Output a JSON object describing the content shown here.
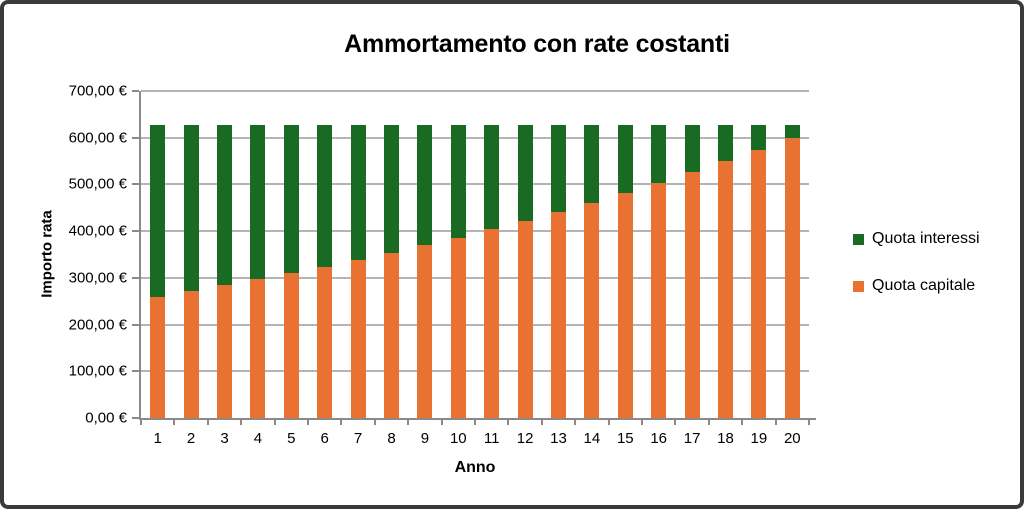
{
  "window": {
    "background": "#ffffff",
    "border_color": "#3a3a3a"
  },
  "colors": {
    "gridline": "#b4b4b4",
    "axis_line": "#8a8a8a",
    "text": "#000000"
  },
  "chart_data": {
    "type": "bar",
    "subtype": "stacked",
    "title": "Ammortamento con rate costanti",
    "xlabel": "Anno",
    "ylabel": "Importo rata",
    "ylim": [
      0,
      700
    ],
    "y_tick_step": 100,
    "grid": true,
    "legend_position": "right",
    "constant_total_rate": 627.0,
    "categories": [
      "1",
      "2",
      "3",
      "4",
      "5",
      "6",
      "7",
      "8",
      "9",
      "10",
      "11",
      "12",
      "13",
      "14",
      "15",
      "16",
      "17",
      "18",
      "19",
      "20"
    ],
    "series": [
      {
        "name": "Quota capitale",
        "color": "#E97132",
        "stack_order": "bottom",
        "values": [
          260.0,
          271.7,
          283.9,
          296.7,
          310.1,
          324.0,
          338.6,
          353.8,
          369.7,
          386.4,
          403.8,
          421.9,
          440.9,
          460.8,
          481.5,
          503.2,
          525.8,
          549.5,
          574.2,
          600.0
        ]
      },
      {
        "name": "Quota interessi",
        "color": "#196B24",
        "stack_order": "top",
        "values": [
          367.0,
          355.3,
          343.1,
          330.3,
          316.9,
          303.0,
          288.4,
          273.2,
          257.3,
          240.6,
          223.2,
          205.1,
          186.1,
          166.2,
          145.5,
          123.8,
          101.2,
          77.5,
          52.8,
          27.0
        ]
      }
    ],
    "y_ticks": [
      {
        "value": 0,
        "label": "0,00 €"
      },
      {
        "value": 100,
        "label": "100,00 €"
      },
      {
        "value": 200,
        "label": "200,00 €"
      },
      {
        "value": 300,
        "label": "300,00 €"
      },
      {
        "value": 400,
        "label": "400,00 €"
      },
      {
        "value": 500,
        "label": "500,00 €"
      },
      {
        "value": 600,
        "label": "600,00 €"
      },
      {
        "value": 700,
        "label": "700,00 €"
      }
    ],
    "legend": [
      {
        "label": "Quota interessi",
        "color": "#196B24"
      },
      {
        "label": "Quota capitale",
        "color": "#E97132"
      }
    ]
  }
}
